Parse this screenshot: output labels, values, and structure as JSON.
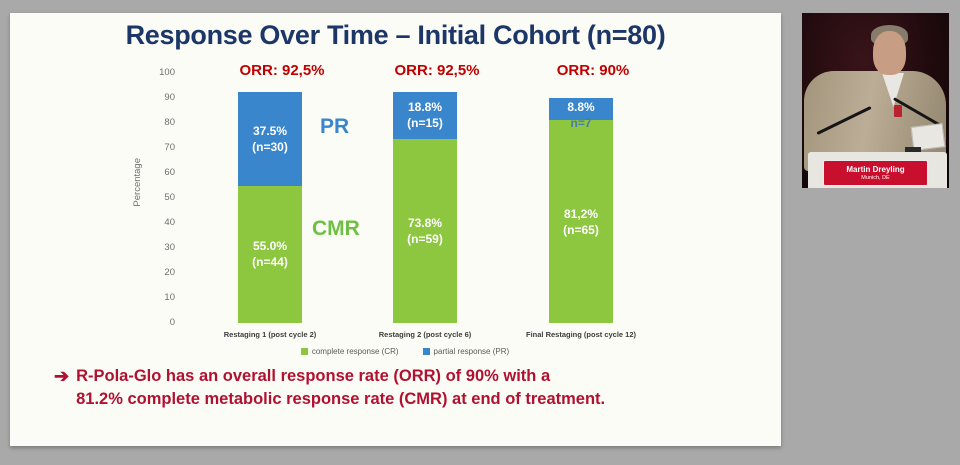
{
  "slide": {
    "title_color": "#1c3667",
    "footer": {
      "arrow": "➔",
      "line1": "R-Pola-Glo has an overall response rate (ORR) of 90% with a",
      "line2": "81.2% complete metabolic response rate (CMR) at end of treatment.",
      "color": "#b01130"
    }
  },
  "chart_data": {
    "type": "bar",
    "stacked": true,
    "title": "Response Over Time – Initial Cohort (n=80)",
    "ylabel": "Percentage",
    "xlabel": "",
    "ylim": [
      0,
      100
    ],
    "yticks": [
      100,
      90,
      80,
      70,
      60,
      50,
      40,
      30,
      20,
      10,
      0
    ],
    "grid": false,
    "legend_position": "bottom",
    "colors": {
      "orr": "#c00000"
    },
    "categories": [
      "Restaging 1 (post cycle 2)",
      "Restaging 2 (post cycle 6)",
      "Final Restaging (post cycle 12)"
    ],
    "orr_labels": [
      "ORR: 92,5%",
      "ORR: 92,5%",
      "ORR: 90%"
    ],
    "series": [
      {
        "name": "complete response (CR)",
        "color": "#8dc63f",
        "values": [
          55.0,
          73.8,
          81.2
        ],
        "value_labels": [
          [
            "55.0%",
            "(n=44)"
          ],
          [
            "73.8%",
            "(n=59)"
          ],
          [
            "81,2%",
            "(n=65)"
          ]
        ]
      },
      {
        "name": "partial response (PR)",
        "color": "#3a86cc",
        "values": [
          37.5,
          18.8,
          8.8
        ],
        "value_labels": [
          [
            "37.5%",
            "(n=30)"
          ],
          [
            "18.8%",
            "(n=15)"
          ],
          [
            "8.8%",
            "n=7"
          ]
        ]
      }
    ],
    "series_annotations": [
      {
        "text": "PR",
        "color": "#3a86cc"
      },
      {
        "text": "CMR",
        "color": "#6fbf44"
      }
    ]
  },
  "video": {
    "speaker_name": "Martin Dreyling",
    "speaker_location": "Munich, DE",
    "plate_color": "#c8102e"
  }
}
